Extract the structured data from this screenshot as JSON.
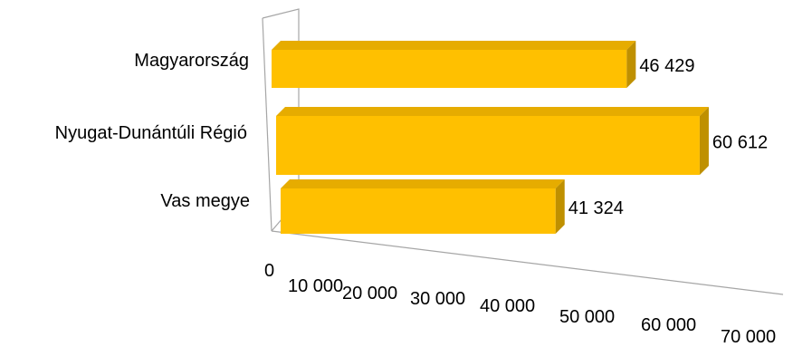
{
  "chart_data": {
    "type": "bar",
    "orientation": "horizontal",
    "style": "3d",
    "categories": [
      "Magyarország",
      "Nyugat-Dunántúli Régió",
      "Vas megye"
    ],
    "values": [
      46429,
      60612,
      41324
    ],
    "value_labels": [
      "46 429",
      "60 612",
      "41 324"
    ],
    "x_ticks": [
      "0",
      "10 000",
      "20 000",
      "30 000",
      "40 000",
      "50 000",
      "60 000",
      "70 000"
    ],
    "xlim": [
      0,
      70000
    ],
    "title": "",
    "xlabel": "",
    "ylabel": "",
    "grid": false,
    "legend": "none",
    "colors": {
      "bar_front": "#FFC000",
      "bar_top": "#E6AC00",
      "bar_side": "#BF9000",
      "axis": "#a6a6a6"
    }
  }
}
